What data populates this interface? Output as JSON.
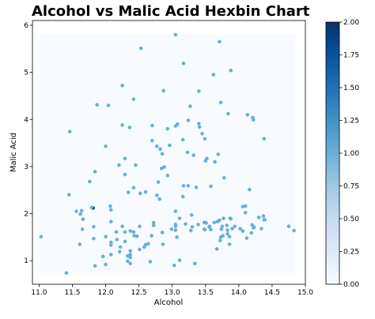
{
  "chart_data": {
    "type": "hexbin",
    "title": "Alcohol vs Malic Acid Hexbin Chart",
    "xlabel": "Alcohol",
    "ylabel": "Malic Acid",
    "xlim": [
      10.9,
      15.0
    ],
    "ylim": [
      0.5,
      6.1
    ],
    "xticks": [
      11.0,
      11.5,
      12.0,
      12.5,
      13.0,
      13.5,
      14.0,
      14.5,
      15.0
    ],
    "yticks": [
      1,
      2,
      3,
      4,
      5,
      6
    ],
    "colorbar": {
      "range": [
        0.0,
        2.0
      ],
      "ticks": [
        0.0,
        0.25,
        0.5,
        0.75,
        1.0,
        1.25,
        1.5,
        1.75,
        2.0
      ],
      "tick_labels": [
        "0.00",
        "0.25",
        "0.50",
        "0.75",
        "1.00",
        "1.25",
        "1.50",
        "1.75",
        "2.00"
      ],
      "colormap": "Blues",
      "color_low": "#f7fbff",
      "color_high": "#08306b"
    },
    "background_region": {
      "x": [
        11.0,
        14.85
      ],
      "y": [
        0.74,
        5.8
      ],
      "count": 0
    },
    "points": [
      {
        "x": 14.23,
        "y": 1.71,
        "c": 1
      },
      {
        "x": 13.2,
        "y": 1.78,
        "c": 1
      },
      {
        "x": 13.16,
        "y": 2.36,
        "c": 1
      },
      {
        "x": 14.37,
        "y": 1.95,
        "c": 1
      },
      {
        "x": 13.24,
        "y": 2.59,
        "c": 1
      },
      {
        "x": 14.2,
        "y": 1.76,
        "c": 1
      },
      {
        "x": 14.39,
        "y": 1.87,
        "c": 1
      },
      {
        "x": 14.06,
        "y": 2.15,
        "c": 1
      },
      {
        "x": 14.83,
        "y": 1.64,
        "c": 1
      },
      {
        "x": 13.86,
        "y": 1.35,
        "c": 1
      },
      {
        "x": 14.1,
        "y": 2.16,
        "c": 1
      },
      {
        "x": 14.12,
        "y": 1.48,
        "c": 1
      },
      {
        "x": 13.75,
        "y": 1.73,
        "c": 1
      },
      {
        "x": 14.75,
        "y": 1.73,
        "c": 1
      },
      {
        "x": 14.38,
        "y": 1.87,
        "c": 1
      },
      {
        "x": 13.63,
        "y": 1.81,
        "c": 1
      },
      {
        "x": 14.3,
        "y": 1.92,
        "c": 1
      },
      {
        "x": 13.83,
        "y": 1.57,
        "c": 1
      },
      {
        "x": 14.19,
        "y": 1.59,
        "c": 1
      },
      {
        "x": 13.64,
        "y": 3.1,
        "c": 1
      },
      {
        "x": 14.06,
        "y": 1.63,
        "c": 1
      },
      {
        "x": 12.93,
        "y": 3.8,
        "c": 1
      },
      {
        "x": 13.71,
        "y": 1.86,
        "c": 1
      },
      {
        "x": 12.85,
        "y": 1.6,
        "c": 1
      },
      {
        "x": 13.5,
        "y": 1.81,
        "c": 1
      },
      {
        "x": 13.05,
        "y": 2.05,
        "c": 1
      },
      {
        "x": 13.39,
        "y": 1.77,
        "c": 1
      },
      {
        "x": 13.3,
        "y": 1.72,
        "c": 1
      },
      {
        "x": 13.87,
        "y": 1.9,
        "c": 1
      },
      {
        "x": 14.02,
        "y": 1.68,
        "c": 1
      },
      {
        "x": 13.73,
        "y": 1.5,
        "c": 1
      },
      {
        "x": 13.58,
        "y": 1.66,
        "c": 1
      },
      {
        "x": 13.68,
        "y": 1.83,
        "c": 1
      },
      {
        "x": 13.76,
        "y": 1.53,
        "c": 1
      },
      {
        "x": 13.51,
        "y": 1.8,
        "c": 1
      },
      {
        "x": 13.48,
        "y": 1.81,
        "c": 1
      },
      {
        "x": 13.28,
        "y": 1.64,
        "c": 1
      },
      {
        "x": 13.05,
        "y": 1.65,
        "c": 1
      },
      {
        "x": 13.07,
        "y": 1.5,
        "c": 1
      },
      {
        "x": 14.22,
        "y": 3.99,
        "c": 1
      },
      {
        "x": 13.56,
        "y": 1.71,
        "c": 1
      },
      {
        "x": 13.41,
        "y": 3.84,
        "c": 1
      },
      {
        "x": 13.88,
        "y": 1.89,
        "c": 1
      },
      {
        "x": 13.24,
        "y": 3.98,
        "c": 1
      },
      {
        "x": 13.05,
        "y": 1.77,
        "c": 1
      },
      {
        "x": 14.21,
        "y": 4.04,
        "c": 1
      },
      {
        "x": 14.38,
        "y": 3.59,
        "c": 1
      },
      {
        "x": 13.9,
        "y": 1.68,
        "c": 1
      },
      {
        "x": 14.1,
        "y": 2.02,
        "c": 1
      },
      {
        "x": 13.94,
        "y": 1.73,
        "c": 1
      },
      {
        "x": 13.05,
        "y": 1.73,
        "c": 1
      },
      {
        "x": 13.83,
        "y": 1.65,
        "c": 1
      },
      {
        "x": 13.82,
        "y": 1.75,
        "c": 1
      },
      {
        "x": 13.77,
        "y": 1.9,
        "c": 1
      },
      {
        "x": 13.74,
        "y": 1.67,
        "c": 1
      },
      {
        "x": 13.56,
        "y": 1.73,
        "c": 1
      },
      {
        "x": 14.22,
        "y": 1.7,
        "c": 1
      },
      {
        "x": 13.29,
        "y": 1.97,
        "c": 1
      },
      {
        "x": 13.72,
        "y": 1.43,
        "c": 1
      },
      {
        "x": 12.37,
        "y": 0.94,
        "c": 1
      },
      {
        "x": 12.33,
        "y": 1.1,
        "c": 1
      },
      {
        "x": 12.64,
        "y": 1.36,
        "c": 1
      },
      {
        "x": 13.67,
        "y": 1.25,
        "c": 1
      },
      {
        "x": 12.37,
        "y": 1.13,
        "c": 1
      },
      {
        "x": 12.17,
        "y": 1.45,
        "c": 1
      },
      {
        "x": 12.37,
        "y": 1.21,
        "c": 1
      },
      {
        "x": 13.11,
        "y": 1.01,
        "c": 1
      },
      {
        "x": 13.34,
        "y": 0.94,
        "c": 1
      },
      {
        "x": 12.21,
        "y": 1.19,
        "c": 1
      },
      {
        "x": 12.29,
        "y": 1.61,
        "c": 1
      },
      {
        "x": 13.86,
        "y": 1.51,
        "c": 1
      },
      {
        "x": 13.49,
        "y": 1.66,
        "c": 1
      },
      {
        "x": 12.99,
        "y": 1.67,
        "c": 1
      },
      {
        "x": 11.96,
        "y": 1.09,
        "c": 1
      },
      {
        "x": 11.66,
        "y": 1.88,
        "c": 1
      },
      {
        "x": 13.03,
        "y": 0.9,
        "c": 1
      },
      {
        "x": 11.84,
        "y": 2.89,
        "c": 1
      },
      {
        "x": 12.33,
        "y": 0.99,
        "c": 1
      },
      {
        "x": 12.7,
        "y": 3.87,
        "c": 1
      },
      {
        "x": 12.0,
        "y": 0.92,
        "c": 1
      },
      {
        "x": 12.72,
        "y": 1.81,
        "c": 1
      },
      {
        "x": 12.08,
        "y": 1.13,
        "c": 1
      },
      {
        "x": 13.05,
        "y": 3.86,
        "c": 1
      },
      {
        "x": 11.84,
        "y": 0.89,
        "c": 1
      },
      {
        "x": 12.67,
        "y": 0.98,
        "c": 1
      },
      {
        "x": 12.16,
        "y": 1.61,
        "c": 1
      },
      {
        "x": 11.65,
        "y": 1.67,
        "c": 1
      },
      {
        "x": 11.64,
        "y": 2.06,
        "c": 1
      },
      {
        "x": 12.08,
        "y": 1.33,
        "c": 1
      },
      {
        "x": 12.08,
        "y": 1.83,
        "c": 1
      },
      {
        "x": 12.0,
        "y": 1.51,
        "c": 1
      },
      {
        "x": 12.69,
        "y": 1.53,
        "c": 1
      },
      {
        "x": 12.29,
        "y": 2.83,
        "c": 1
      },
      {
        "x": 11.62,
        "y": 1.99,
        "c": 1
      },
      {
        "x": 12.47,
        "y": 1.52,
        "c": 1
      },
      {
        "x": 11.81,
        "y": 2.12,
        "c": 2
      },
      {
        "x": 12.29,
        "y": 1.41,
        "c": 1
      },
      {
        "x": 12.37,
        "y": 1.07,
        "c": 1
      },
      {
        "x": 12.29,
        "y": 3.17,
        "c": 1
      },
      {
        "x": 12.08,
        "y": 2.08,
        "c": 1
      },
      {
        "x": 12.6,
        "y": 1.34,
        "c": 1
      },
      {
        "x": 12.34,
        "y": 2.45,
        "c": 1
      },
      {
        "x": 11.82,
        "y": 1.72,
        "c": 1
      },
      {
        "x": 12.51,
        "y": 1.73,
        "c": 1
      },
      {
        "x": 12.42,
        "y": 2.55,
        "c": 1
      },
      {
        "x": 12.25,
        "y": 1.73,
        "c": 1
      },
      {
        "x": 12.72,
        "y": 1.75,
        "c": 1
      },
      {
        "x": 12.22,
        "y": 1.29,
        "c": 1
      },
      {
        "x": 11.61,
        "y": 1.35,
        "c": 1
      },
      {
        "x": 11.46,
        "y": 3.74,
        "c": 1
      },
      {
        "x": 12.52,
        "y": 2.43,
        "c": 1
      },
      {
        "x": 11.76,
        "y": 2.68,
        "c": 1
      },
      {
        "x": 11.41,
        "y": 0.74,
        "c": 1
      },
      {
        "x": 12.08,
        "y": 1.39,
        "c": 1
      },
      {
        "x": 11.03,
        "y": 1.51,
        "c": 1
      },
      {
        "x": 11.82,
        "y": 1.47,
        "c": 1
      },
      {
        "x": 12.42,
        "y": 1.61,
        "c": 1
      },
      {
        "x": 12.77,
        "y": 3.43,
        "c": 1
      },
      {
        "x": 12.0,
        "y": 3.43,
        "c": 1
      },
      {
        "x": 11.45,
        "y": 2.4,
        "c": 1
      },
      {
        "x": 11.56,
        "y": 2.05,
        "c": 1
      },
      {
        "x": 12.42,
        "y": 4.43,
        "c": 1
      },
      {
        "x": 13.05,
        "y": 5.8,
        "c": 1
      },
      {
        "x": 11.87,
        "y": 4.31,
        "c": 1
      },
      {
        "x": 12.07,
        "y": 2.16,
        "c": 1
      },
      {
        "x": 12.43,
        "y": 1.53,
        "c": 1
      },
      {
        "x": 11.79,
        "y": 2.13,
        "c": 1
      },
      {
        "x": 12.37,
        "y": 1.63,
        "c": 1
      },
      {
        "x": 12.04,
        "y": 4.3,
        "c": 1
      },
      {
        "x": 12.86,
        "y": 1.35,
        "c": 1
      },
      {
        "x": 12.88,
        "y": 2.99,
        "c": 1
      },
      {
        "x": 12.81,
        "y": 2.31,
        "c": 1
      },
      {
        "x": 12.7,
        "y": 3.55,
        "c": 1
      },
      {
        "x": 12.51,
        "y": 1.24,
        "c": 1
      },
      {
        "x": 12.6,
        "y": 2.46,
        "c": 1
      },
      {
        "x": 12.25,
        "y": 4.72,
        "c": 1
      },
      {
        "x": 12.53,
        "y": 5.51,
        "c": 1
      },
      {
        "x": 13.49,
        "y": 3.59,
        "c": 1
      },
      {
        "x": 12.84,
        "y": 2.96,
        "c": 1
      },
      {
        "x": 12.93,
        "y": 2.81,
        "c": 1
      },
      {
        "x": 13.36,
        "y": 2.56,
        "c": 1
      },
      {
        "x": 13.52,
        "y": 3.17,
        "c": 1
      },
      {
        "x": 13.62,
        "y": 4.95,
        "c": 1
      },
      {
        "x": 12.25,
        "y": 3.88,
        "c": 1
      },
      {
        "x": 13.16,
        "y": 3.57,
        "c": 1
      },
      {
        "x": 13.88,
        "y": 5.04,
        "c": 1
      },
      {
        "x": 12.87,
        "y": 4.61,
        "c": 1
      },
      {
        "x": 13.32,
        "y": 3.24,
        "c": 1
      },
      {
        "x": 13.08,
        "y": 3.9,
        "c": 1
      },
      {
        "x": 13.5,
        "y": 3.12,
        "c": 1
      },
      {
        "x": 12.79,
        "y": 2.67,
        "c": 1
      },
      {
        "x": 13.11,
        "y": 1.9,
        "c": 1
      },
      {
        "x": 13.23,
        "y": 3.3,
        "c": 1
      },
      {
        "x": 12.58,
        "y": 1.29,
        "c": 1
      },
      {
        "x": 13.17,
        "y": 5.19,
        "c": 1
      },
      {
        "x": 13.84,
        "y": 4.12,
        "c": 1
      },
      {
        "x": 12.45,
        "y": 3.03,
        "c": 1
      },
      {
        "x": 14.34,
        "y": 1.68,
        "c": 1
      },
      {
        "x": 13.48,
        "y": 1.67,
        "c": 1
      },
      {
        "x": 12.36,
        "y": 3.83,
        "c": 1
      },
      {
        "x": 13.69,
        "y": 3.26,
        "c": 1
      },
      {
        "x": 12.85,
        "y": 3.27,
        "c": 1
      },
      {
        "x": 12.96,
        "y": 3.45,
        "c": 1
      },
      {
        "x": 13.78,
        "y": 2.76,
        "c": 1
      },
      {
        "x": 13.73,
        "y": 4.36,
        "c": 1
      },
      {
        "x": 13.45,
        "y": 3.7,
        "c": 1
      },
      {
        "x": 12.82,
        "y": 3.37,
        "c": 1
      },
      {
        "x": 13.58,
        "y": 2.58,
        "c": 1
      },
      {
        "x": 13.4,
        "y": 4.6,
        "c": 1
      },
      {
        "x": 12.2,
        "y": 3.03,
        "c": 1
      },
      {
        "x": 12.77,
        "y": 2.39,
        "c": 1
      },
      {
        "x": 14.16,
        "y": 2.51,
        "c": 1
      },
      {
        "x": 13.71,
        "y": 5.65,
        "c": 1
      },
      {
        "x": 13.4,
        "y": 3.91,
        "c": 1
      },
      {
        "x": 13.27,
        "y": 4.28,
        "c": 1
      },
      {
        "x": 13.17,
        "y": 2.59,
        "c": 1
      },
      {
        "x": 14.13,
        "y": 4.1,
        "c": 1
      }
    ]
  }
}
